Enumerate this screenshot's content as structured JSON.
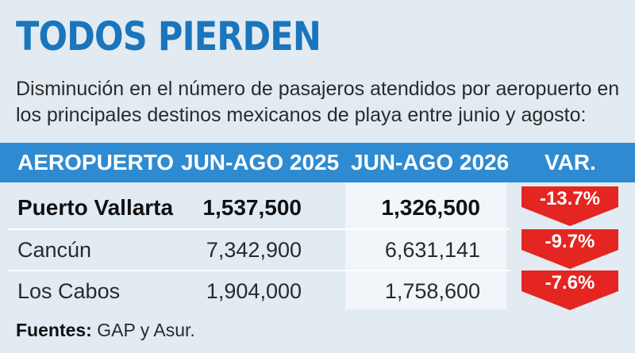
{
  "title": "TODOS PIERDEN",
  "subtitle": "Disminución en el número de pasajeros atendidos por aeropuerto en los principales destinos mexicanos de playa entre junio y agosto:",
  "colors": {
    "title": "#1a75bb",
    "header": "#2e8bd1",
    "arrow": "#e52521"
  },
  "chart_data": {
    "type": "table",
    "columns": [
      "AEROPUERTO",
      "JUN-AGO 2025",
      "JUN-AGO 2026",
      "VAR."
    ],
    "rows": [
      {
        "airport": "Puerto Vallarta",
        "y2025": "1,537,500",
        "y2026": "1,326,500",
        "var": "-13.7%"
      },
      {
        "airport": "Cancún",
        "y2025": "7,342,900",
        "y2026": "6,631,141",
        "var": "-9.7%"
      },
      {
        "airport": "Los Cabos",
        "y2025": "1,904,000",
        "y2026": "1,758,600",
        "var": "-7.6%"
      }
    ]
  },
  "source": {
    "label": "Fuentes:",
    "text": " GAP y Asur."
  }
}
